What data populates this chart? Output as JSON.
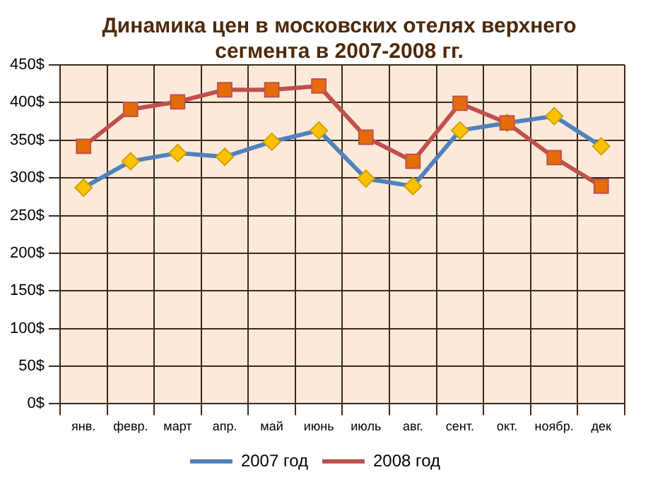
{
  "chart_data": {
    "type": "line",
    "title": "Динамика цен в московских отелях верхнего сегмента в 2007-2008 гг.",
    "categories": [
      "янв.",
      "февр.",
      "март",
      "апр.",
      "май",
      "июнь",
      "июль",
      "авг.",
      "сент.",
      "окт.",
      "ноябр.",
      "дек"
    ],
    "series": [
      {
        "name": "2007 год",
        "color": "#4f81bd",
        "marker": "diamond",
        "values": [
          287,
          322,
          333,
          328,
          348,
          363,
          299,
          289,
          363,
          373,
          382,
          342
        ]
      },
      {
        "name": "2008 год",
        "color": "#c0504d",
        "marker": "square",
        "values": [
          342,
          391,
          401,
          417,
          417,
          422,
          354,
          322,
          399,
          373,
          327,
          289
        ]
      }
    ],
    "ylim": [
      0,
      450
    ],
    "yticks": [
      {
        "value": 0,
        "label": "0$"
      },
      {
        "value": 50,
        "label": "50$"
      },
      {
        "value": 100,
        "label": "100$"
      },
      {
        "value": 150,
        "label": "150$"
      },
      {
        "value": 200,
        "label": "200$"
      },
      {
        "value": 250,
        "label": "250$"
      },
      {
        "value": 300,
        "label": "300$"
      },
      {
        "value": 350,
        "label": "350$"
      },
      {
        "value": 400,
        "label": "400$"
      },
      {
        "value": 450,
        "label": "450$"
      }
    ],
    "grid": true,
    "legend": "bottom"
  }
}
